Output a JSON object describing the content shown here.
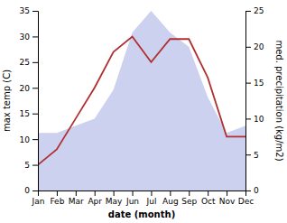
{
  "chart_data": {
    "type": "line",
    "categories": [
      "Jan",
      "Feb",
      "Mar",
      "Apr",
      "May",
      "Jun",
      "Jul",
      "Aug",
      "Sep",
      "Oct",
      "Nov",
      "Dec"
    ],
    "xlabel": "date (month)",
    "ylabel": "max temp (C)",
    "y2label": "med. precipitation (kg/m2)",
    "series": [
      {
        "type": "area",
        "axis": "y2",
        "color": "#b0b8e8",
        "values": [
          8,
          8,
          9,
          10,
          14,
          22,
          25,
          22,
          20,
          13,
          8,
          9
        ]
      },
      {
        "type": "line",
        "color": "#b03030",
        "values": [
          5.0,
          8.0,
          14.0,
          20.0,
          27.0,
          30.0,
          25.0,
          29.5,
          29.5,
          22.0,
          10.5,
          10.5
        ]
      }
    ],
    "ylim": [
      0,
      35
    ],
    "yticks": [
      0,
      5,
      10,
      15,
      20,
      25,
      30,
      35
    ],
    "y2lim": [
      0,
      25
    ],
    "y2ticks": [
      0,
      5,
      10,
      15,
      20,
      25
    ],
    "grid": false
  }
}
